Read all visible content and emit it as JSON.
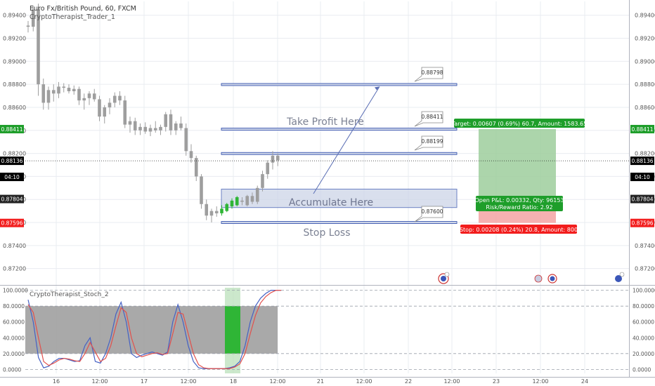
{
  "header": {
    "symbol_line": "Euro Fx/British Pound, 60, FXCM",
    "indicator_name": "CryptoTherapist_Trader_1",
    "osc_name": "CryptoTherapist_Stoch_2"
  },
  "colors": {
    "background": "#ffffff",
    "grid": "#e9ecf1",
    "up_candle": "#9e9e9e",
    "down_candle": "#9e9e9e",
    "accumulate_candle": "#2fb536",
    "zone_fill": "#cdd5e8",
    "zone_border": "#3b58b1",
    "target_green": "#1e9e2a",
    "stop_red": "#f21d1d",
    "k_line": "#4561c4",
    "d_line": "#e2504c"
  },
  "price_axis": {
    "ticks": [
      "0.89400",
      "0.89200",
      "0.89000",
      "0.88800",
      "0.88600",
      "0.88400",
      "0.88200",
      "0.88000",
      "0.87800",
      "0.87600",
      "0.87400",
      "0.87200"
    ],
    "tick_values": [
      0.894,
      0.892,
      0.89,
      0.888,
      0.886,
      0.884,
      0.882,
      0.88,
      0.878,
      0.876,
      0.874,
      0.872
    ],
    "badges": [
      {
        "label": "0.88411",
        "value": 0.88411,
        "color": "#1e9e2a"
      },
      {
        "label": "0.88136",
        "value": 0.88136,
        "color": "#000000"
      },
      {
        "label": "04:10",
        "value": 0.87996,
        "color": "#000000"
      },
      {
        "label": "0.87804",
        "value": 0.87804,
        "color": "#222222"
      },
      {
        "label": "0.87596",
        "value": 0.87596,
        "color": "#f21d1d"
      }
    ]
  },
  "time_axis": {
    "ticks": [
      "16",
      "12:00",
      "17",
      "12:00",
      "18",
      "12:00",
      "21",
      "12:00",
      "22",
      "12:00",
      "23",
      "12:00",
      "24"
    ]
  },
  "osc_axis": {
    "ticks": [
      "100.0000",
      "80.0000",
      "60.0000",
      "40.0000",
      "20.0000",
      "0.0000"
    ],
    "tick_values": [
      100,
      80,
      60,
      40,
      20,
      0
    ]
  },
  "annotations": {
    "take_profit": "Take Profit Here",
    "accumulate": "Accumulate Here",
    "stop_loss": "Stop Loss",
    "callouts": [
      "0.88798",
      "0.88411",
      "0.88199",
      "0.87600"
    ],
    "target_label": "Target: 0.00607 (0.69%) 60.7, Amount: 1583.65",
    "open_pl_label_1": "Open P&L: 0.00332, Qty: 96153",
    "open_pl_label_2": "Risk/Reward Ratio: 2.92",
    "stop_label": "Stop: 0.00208 (0.24%) 20.8, Amount: 800"
  },
  "chart_data": [
    {
      "type": "candlestick",
      "title": "Euro Fx/British Pound, 60, FXCM",
      "ylim": [
        0.8707,
        0.8952
      ],
      "levels": [
        0.88798,
        0.88411,
        0.88199,
        0.876
      ],
      "accumulate_zone": [
        0.8773,
        0.8789
      ],
      "long_position": {
        "entry": 0.87804,
        "target": 0.88411,
        "stop": 0.87596
      },
      "last_price": 0.88136,
      "candles": [
        [
          0.8931,
          0.8935,
          0.8925,
          0.893
        ],
        [
          0.893,
          0.8948,
          0.8926,
          0.8945
        ],
        [
          0.8945,
          0.895,
          0.887,
          0.888
        ],
        [
          0.888,
          0.8885,
          0.8858,
          0.8864
        ],
        [
          0.8864,
          0.8878,
          0.8858,
          0.8875
        ],
        [
          0.8875,
          0.888,
          0.8865,
          0.8872
        ],
        [
          0.8872,
          0.8882,
          0.8868,
          0.8878
        ],
        [
          0.8878,
          0.8881,
          0.8873,
          0.8877
        ],
        [
          0.8877,
          0.888,
          0.8872,
          0.8874
        ],
        [
          0.8874,
          0.8879,
          0.8871,
          0.8876
        ],
        [
          0.8876,
          0.8878,
          0.8862,
          0.8866
        ],
        [
          0.8866,
          0.8872,
          0.8858,
          0.8868
        ],
        [
          0.8868,
          0.8874,
          0.8862,
          0.8872
        ],
        [
          0.8872,
          0.8876,
          0.8865,
          0.8867
        ],
        [
          0.8867,
          0.887,
          0.8848,
          0.8852
        ],
        [
          0.8852,
          0.8862,
          0.8846,
          0.886
        ],
        [
          0.886,
          0.8868,
          0.8854,
          0.8864
        ],
        [
          0.8864,
          0.8873,
          0.886,
          0.887
        ],
        [
          0.887,
          0.8874,
          0.8862,
          0.8866
        ],
        [
          0.8866,
          0.887,
          0.8842,
          0.8845
        ],
        [
          0.8845,
          0.8852,
          0.8838,
          0.8848
        ],
        [
          0.8848,
          0.8851,
          0.8836,
          0.884
        ],
        [
          0.884,
          0.8846,
          0.8836,
          0.8843
        ],
        [
          0.8843,
          0.8847,
          0.8837,
          0.8839
        ],
        [
          0.8839,
          0.8845,
          0.8835,
          0.8842
        ],
        [
          0.8842,
          0.8848,
          0.8838,
          0.884
        ],
        [
          0.884,
          0.8845,
          0.8836,
          0.8843
        ],
        [
          0.8843,
          0.8856,
          0.8839,
          0.8854
        ],
        [
          0.8854,
          0.8858,
          0.8836,
          0.884
        ],
        [
          0.884,
          0.8848,
          0.8836,
          0.8846
        ],
        [
          0.8846,
          0.8852,
          0.884,
          0.8842
        ],
        [
          0.8842,
          0.8846,
          0.8818,
          0.8822
        ],
        [
          0.8822,
          0.8828,
          0.8812,
          0.8816
        ],
        [
          0.8816,
          0.8818,
          0.8796,
          0.88
        ],
        [
          0.88,
          0.8802,
          0.8772,
          0.8776
        ],
        [
          0.8776,
          0.878,
          0.8762,
          0.8766
        ],
        [
          0.8766,
          0.8772,
          0.876,
          0.877
        ],
        [
          0.877,
          0.8774,
          0.8765,
          0.8768
        ],
        [
          0.8768,
          0.8775,
          0.8766,
          0.8772
        ],
        [
          0.877,
          0.8777,
          0.8769,
          0.8776
        ],
        [
          0.8774,
          0.8781,
          0.8772,
          0.8779
        ],
        [
          0.8775,
          0.8783,
          0.8774,
          0.8782
        ],
        [
          0.8779,
          0.8782,
          0.8775,
          0.8778
        ],
        [
          0.8775,
          0.8784,
          0.8774,
          0.8783
        ],
        [
          0.8783,
          0.8786,
          0.8776,
          0.8778
        ],
        [
          0.8778,
          0.8792,
          0.8776,
          0.879
        ],
        [
          0.879,
          0.8805,
          0.8787,
          0.8802
        ],
        [
          0.8802,
          0.8814,
          0.8798,
          0.8812
        ],
        [
          0.8812,
          0.8822,
          0.8806,
          0.8818
        ],
        [
          0.8818,
          0.882,
          0.8809,
          0.8814
        ]
      ]
    },
    {
      "type": "line",
      "title": "CryptoTherapist_Stoch_2",
      "ylim": [
        -5,
        105
      ],
      "series": [
        {
          "name": "",
          "values": [
            88,
            60,
            15,
            2,
            4,
            10,
            14,
            14,
            12,
            10,
            11,
            30,
            40,
            10,
            8,
            20,
            40,
            70,
            85,
            60,
            20,
            15,
            18,
            20,
            22,
            20,
            18,
            22,
            60,
            82,
            60,
            30,
            10,
            2,
            1,
            1,
            1,
            1,
            1,
            2,
            4,
            10,
            30,
            60,
            80,
            90,
            96,
            100,
            100,
            100
          ]
        },
        {
          "name": "",
          "values": [
            82,
            72,
            40,
            10,
            5,
            8,
            12,
            14,
            13,
            11,
            10,
            20,
            34,
            22,
            10,
            14,
            30,
            55,
            78,
            72,
            40,
            20,
            16,
            18,
            20,
            21,
            19,
            20,
            45,
            72,
            70,
            45,
            20,
            6,
            2,
            1,
            1,
            1,
            1,
            1,
            3,
            7,
            20,
            45,
            68,
            84,
            92,
            97,
            100,
            100
          ]
        }
      ]
    }
  ]
}
